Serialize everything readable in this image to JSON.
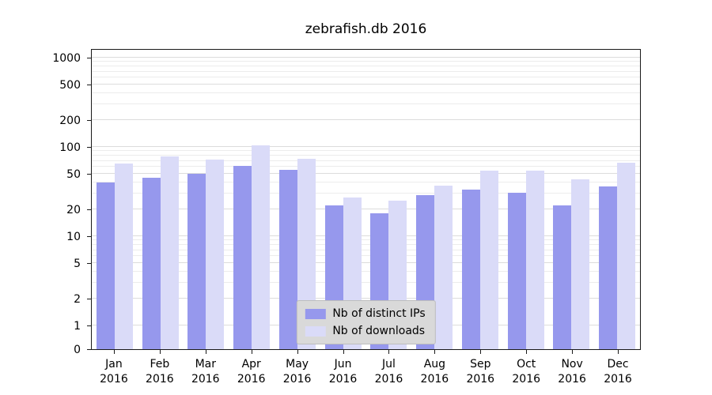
{
  "chart_data": {
    "type": "bar",
    "title": "zebrafish.db 2016",
    "categories": [
      "Jan",
      "Feb",
      "Mar",
      "Apr",
      "May",
      "Jun",
      "Jul",
      "Aug",
      "Sep",
      "Oct",
      "Nov",
      "Dec"
    ],
    "x_sublabel": "2016",
    "series": [
      {
        "name": "Nb of distinct IPs",
        "color": "#9698ed",
        "values": [
          40,
          45,
          50,
          62,
          55,
          22,
          18,
          29,
          33,
          31,
          22,
          36
        ]
      },
      {
        "name": "Nb of downloads",
        "color": "#dadbf8",
        "values": [
          65,
          78,
          72,
          105,
          74,
          27,
          25,
          37,
          54,
          54,
          43,
          66
        ]
      }
    ],
    "y_ticks": [
      1000,
      500,
      200,
      100,
      50,
      20,
      10,
      5,
      2,
      1,
      0
    ],
    "y_scale": "symlog",
    "ylim": [
      0,
      1200
    ],
    "grid": "horizontal",
    "legend_position": "bottom-center"
  },
  "colors": {
    "grid_major": "#dcdcdc",
    "grid_minor": "#ececec",
    "spine": "#1a1a1a",
    "legend_bg": "#d9d9d9",
    "legend_border": "#bdbdbd"
  }
}
